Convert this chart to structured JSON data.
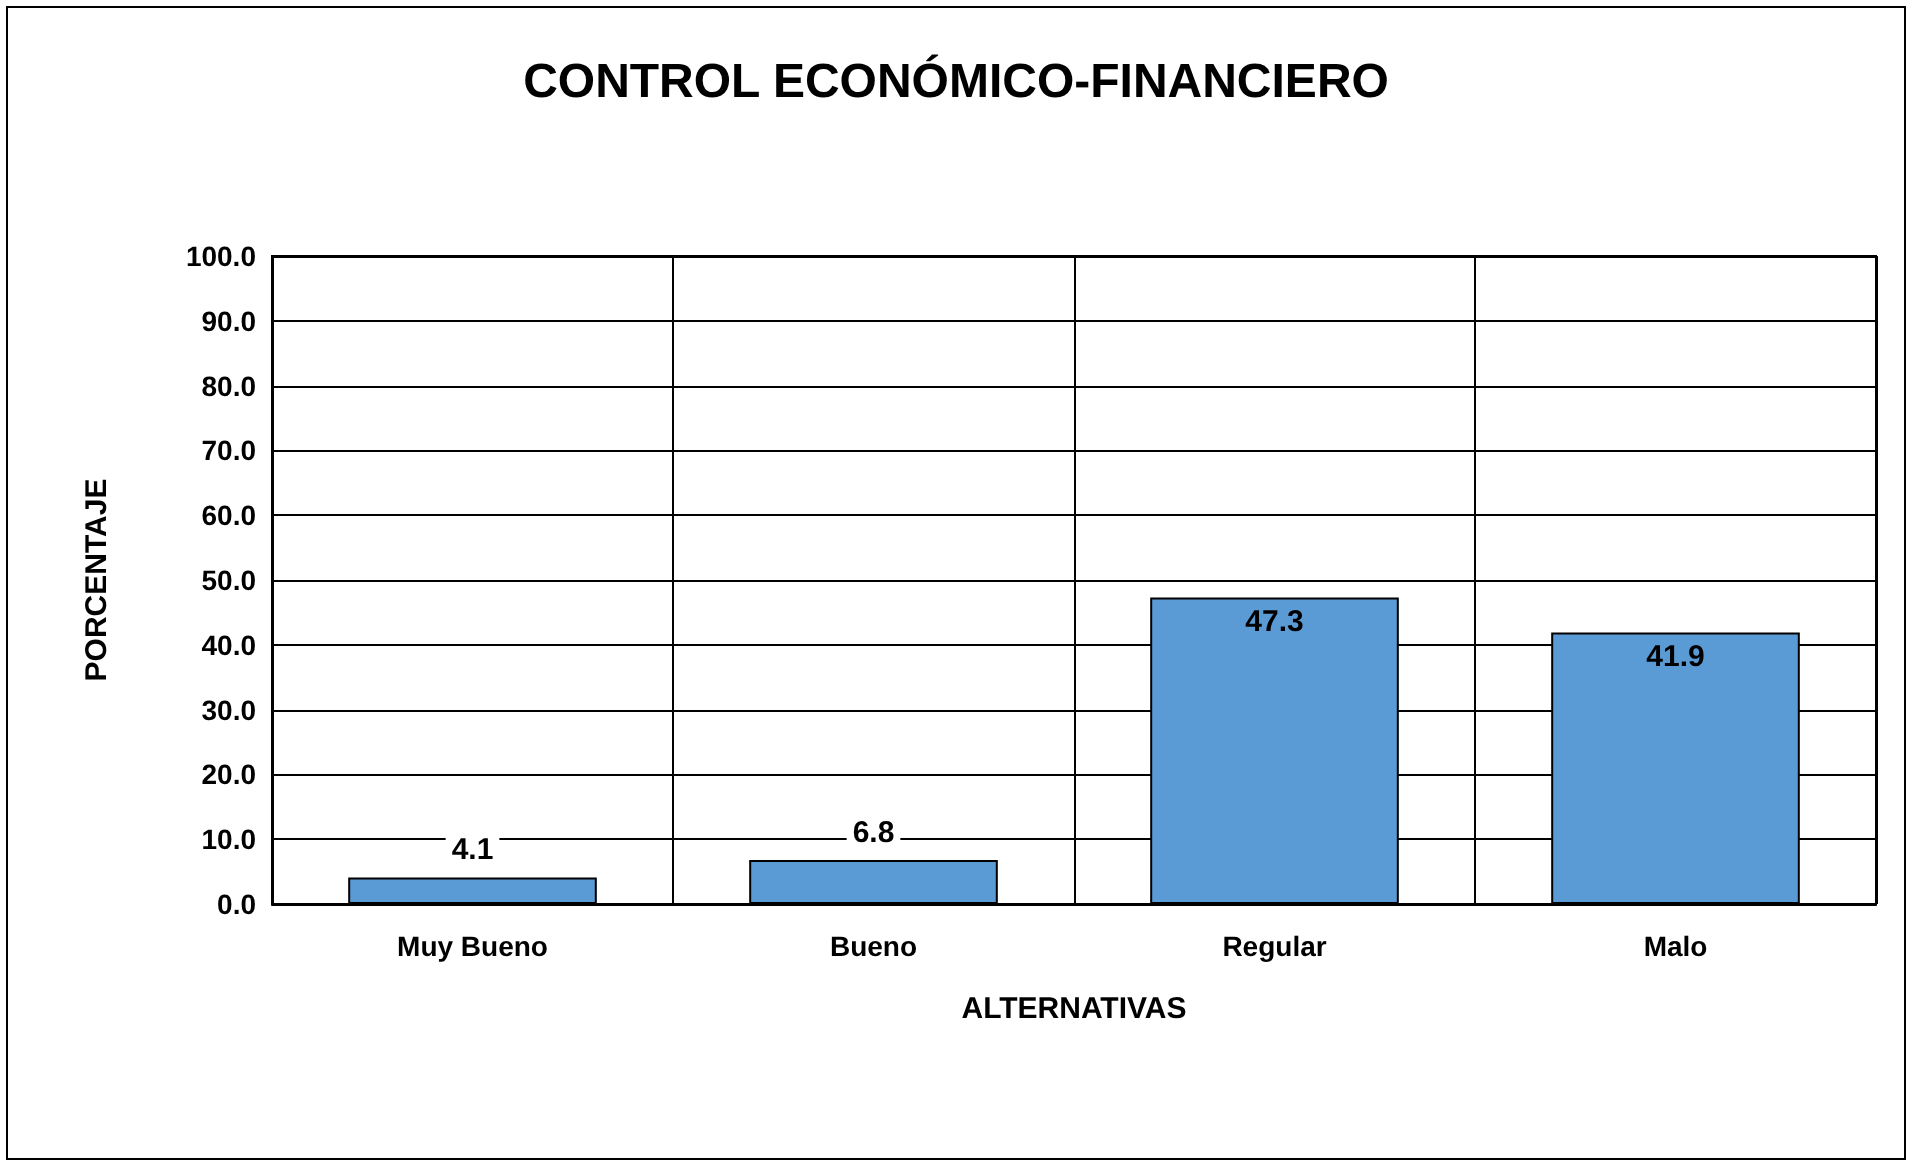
{
  "chart_data": {
    "type": "bar",
    "title": "CONTROL ECONÓMICO-FINANCIERO",
    "xlabel": "ALTERNATIVAS",
    "ylabel": "PORCENTAJE",
    "categories": [
      "Muy Bueno",
      "Bueno",
      "Regular",
      "Malo"
    ],
    "values": [
      4.1,
      6.8,
      47.3,
      41.9
    ],
    "color": "#5b9bd5",
    "ylim": [
      0,
      100
    ],
    "yticks": [
      {
        "value": 0,
        "label": "0.0"
      },
      {
        "value": 10,
        "label": "10.0"
      },
      {
        "value": 20,
        "label": "20.0"
      },
      {
        "value": 30,
        "label": "30.0"
      },
      {
        "value": 40,
        "label": "40.0"
      },
      {
        "value": 50,
        "label": "50.0"
      },
      {
        "value": 60,
        "label": "60.0"
      },
      {
        "value": 70,
        "label": "70.0"
      },
      {
        "value": 80,
        "label": "80.0"
      },
      {
        "value": 90,
        "label": "90.0"
      },
      {
        "value": 100,
        "label": "100.0"
      }
    ],
    "grid": true,
    "data_labels": true
  }
}
